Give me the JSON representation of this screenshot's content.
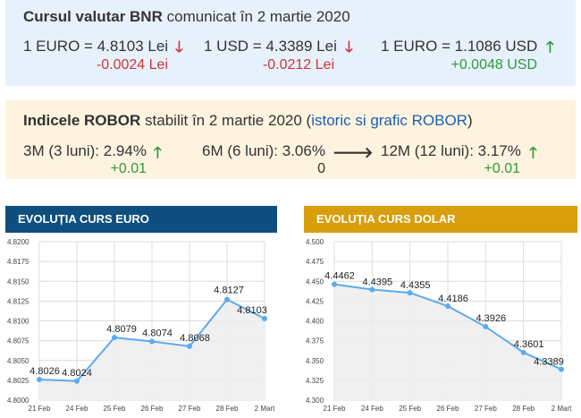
{
  "bnr": {
    "title": "Cursul valutar BNR",
    "subtitle": "comunicat în 2 martie 2020",
    "rates": [
      {
        "label": "1 EURO = 4.8103 Lei",
        "change": "-0.0024 Lei",
        "direction": "down",
        "arrow_icon": "arrow-down-icon"
      },
      {
        "label": "1 USD = 4.3389 Lei",
        "change": "-0.0212 Lei",
        "direction": "down",
        "arrow_icon": "arrow-down-icon"
      },
      {
        "label": "1 EURO = 1.1086 USD",
        "change": "+0.0048 USD",
        "direction": "up",
        "arrow_icon": "arrow-up-icon"
      }
    ]
  },
  "robor": {
    "title": "Indicele ROBOR",
    "subtitle": "stabilit în 2 martie 2020 (",
    "link": "istoric si grafic ROBOR",
    "subtitle_end": ")",
    "items": [
      {
        "label": "3M (3 luni): 2.94%",
        "change": "+0.01",
        "direction": "up",
        "arrow_icon": "arrow-up-icon"
      },
      {
        "label": "6M (6 luni): 3.06%",
        "change": "0",
        "direction": "right",
        "arrow_icon": "arrow-right-icon"
      },
      {
        "label": "12M (12 luni): 3.17%",
        "change": "+0.01",
        "direction": "up",
        "arrow_icon": "arrow-up-icon"
      }
    ]
  },
  "colors": {
    "euro_header": "#0f4f80",
    "dollar_header": "#d89e0c",
    "line": "#5aaaf0",
    "negative": "#d0343a",
    "positive": "#2e9a3b"
  },
  "chart_data": [
    {
      "type": "line",
      "title": "EVOLUȚIA CURS EURO",
      "categories": [
        "21 Feb",
        "24 Feb",
        "25 Feb",
        "26 Feb",
        "27 Feb",
        "28 Feb",
        "2 Mart"
      ],
      "values": [
        4.8026,
        4.8024,
        4.8079,
        4.8074,
        4.8068,
        4.8127,
        4.8103
      ],
      "data_labels": [
        "4.8026",
        "4.8024",
        "4.8079",
        "4.8074",
        "4.8068",
        "4.8127",
        "4.8103"
      ],
      "yticks": [
        "4.8200",
        "4.8175",
        "4.8150",
        "4.8125",
        "4.8100",
        "4.8075",
        "4.8050",
        "4.8025",
        "4.8000"
      ],
      "ylim": [
        4.8,
        4.82
      ],
      "grid": true
    },
    {
      "type": "line",
      "title": "EVOLUȚIA CURS DOLAR",
      "categories": [
        "21 Feb",
        "24 Feb",
        "25 Feb",
        "26 Feb",
        "27 Feb",
        "28 Feb",
        "2 Mart"
      ],
      "values": [
        4.4462,
        4.4395,
        4.4355,
        4.4186,
        4.3926,
        4.3601,
        4.3389
      ],
      "data_labels": [
        "4.4462",
        "4.4395",
        "4.4355",
        "4.4186",
        "4.3926",
        "4.3601",
        "4.3389"
      ],
      "yticks": [
        "4.500",
        "4.475",
        "4.450",
        "4.425",
        "4.400",
        "4.375",
        "4.350",
        "4.325",
        "4.300"
      ],
      "ylim": [
        4.3,
        4.5
      ],
      "grid": true
    }
  ]
}
